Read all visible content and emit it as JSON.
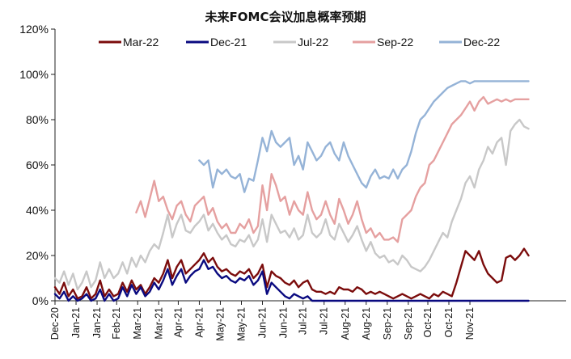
{
  "chart_data": {
    "type": "line",
    "title": "未来FOMC会议加息概率预期",
    "xlabel": "",
    "ylabel": "",
    "ylim": [
      0,
      120
    ],
    "xlim": [
      0,
      340
    ],
    "y_ticks": [
      "0%",
      "20%",
      "40%",
      "60%",
      "80%",
      "100%",
      "120%"
    ],
    "y_tick_values": [
      0,
      20,
      40,
      60,
      80,
      100,
      120
    ],
    "x_ticks": [
      "Dec-20",
      "Jan-21",
      "Jan-21",
      "Feb-21",
      "Mar-21",
      "Mar-21",
      "Apr-21",
      "Apr-21",
      "May-21",
      "May-21",
      "Jun-21",
      "Jun-21",
      "Jul-21",
      "Jul-21",
      "Aug-21",
      "Aug-21",
      "Sep-21",
      "Sep-21",
      "Oct-21",
      "Oct-21",
      "Nov-21"
    ],
    "x_tick_positions": [
      0,
      14,
      28,
      41,
      55,
      69,
      82,
      96,
      110,
      124,
      138,
      152,
      165,
      179,
      193,
      207,
      221,
      235,
      248,
      262,
      276
    ],
    "legend": {
      "placement": "top"
    },
    "series": [
      {
        "name": "Mar-22",
        "color": "#7b0c0c",
        "x": [
          0,
          3,
          6,
          9,
          12,
          15,
          18,
          21,
          24,
          27,
          30,
          33,
          36,
          39,
          42,
          45,
          48,
          51,
          54,
          57,
          60,
          63,
          66,
          69,
          72,
          75,
          78,
          81,
          84,
          87,
          90,
          93,
          96,
          99,
          102,
          105,
          108,
          111,
          114,
          117,
          120,
          123,
          126,
          129,
          132,
          135,
          138,
          141,
          144,
          147,
          150,
          153,
          156,
          159,
          162,
          165,
          168,
          171,
          174,
          177,
          180,
          183,
          186,
          189,
          192,
          195,
          198,
          201,
          204,
          207,
          210,
          213,
          216,
          219,
          222,
          225,
          228,
          231,
          234,
          237,
          240,
          243,
          246,
          249,
          252,
          255,
          258,
          261,
          264,
          267,
          270,
          273,
          276,
          279,
          282,
          285,
          288,
          291,
          294,
          297,
          300,
          303,
          306,
          309,
          312,
          315
        ],
        "values": [
          6,
          3,
          8,
          2,
          5,
          1,
          2,
          6,
          1,
          3,
          9,
          2,
          5,
          2,
          3,
          8,
          4,
          9,
          5,
          7,
          3,
          6,
          10,
          8,
          12,
          18,
          10,
          15,
          18,
          12,
          14,
          16,
          18,
          21,
          17,
          19,
          15,
          13,
          14,
          12,
          11,
          13,
          12,
          14,
          10,
          12,
          16,
          6,
          13,
          11,
          10,
          8,
          7,
          9,
          6,
          8,
          9,
          5,
          4,
          4,
          3,
          4,
          3,
          6,
          5,
          5,
          4,
          6,
          5,
          3,
          4,
          3,
          4,
          3,
          2,
          1,
          2,
          3,
          2,
          1,
          2,
          3,
          2,
          1,
          3,
          2,
          4,
          3,
          2,
          8,
          15,
          22,
          20,
          18,
          22,
          16,
          12,
          10,
          8,
          9,
          19,
          20,
          18,
          20,
          23,
          20
        ]
      },
      {
        "name": "Dec-21",
        "color": "#0a0a80",
        "x": [
          0,
          3,
          6,
          9,
          12,
          15,
          18,
          21,
          24,
          27,
          30,
          33,
          36,
          39,
          42,
          45,
          48,
          51,
          54,
          57,
          60,
          63,
          66,
          69,
          72,
          75,
          78,
          81,
          84,
          87,
          90,
          93,
          96,
          99,
          102,
          105,
          108,
          111,
          114,
          117,
          120,
          123,
          126,
          129,
          132,
          135,
          138,
          141,
          144,
          147,
          150,
          153,
          156,
          159,
          162,
          165,
          168,
          171,
          174,
          177,
          180,
          183,
          186,
          189,
          192,
          195,
          198,
          201,
          204,
          207,
          210,
          213,
          216,
          219,
          222,
          225,
          228,
          231,
          234,
          237,
          240,
          243,
          246,
          249,
          252,
          255,
          258,
          261,
          264,
          267,
          270,
          273,
          276,
          279,
          282,
          285,
          288,
          291,
          294,
          297,
          300,
          303,
          306,
          309,
          312,
          315
        ],
        "values": [
          3,
          1,
          4,
          0,
          2,
          0,
          1,
          3,
          0,
          1,
          5,
          0,
          3,
          0,
          1,
          6,
          2,
          7,
          3,
          6,
          2,
          4,
          8,
          5,
          9,
          14,
          7,
          11,
          14,
          8,
          11,
          13,
          14,
          18,
          14,
          15,
          12,
          10,
          11,
          9,
          8,
          10,
          9,
          11,
          7,
          9,
          13,
          3,
          8,
          6,
          4,
          2,
          1,
          3,
          2,
          1,
          2,
          0,
          0,
          0,
          0,
          0,
          0,
          0,
          0,
          0,
          0,
          0,
          0,
          0,
          0,
          0,
          0,
          0,
          0,
          0,
          0,
          0,
          0,
          0,
          0,
          0,
          0,
          0,
          0,
          0,
          0,
          0,
          0,
          0,
          0,
          0,
          0,
          0,
          0,
          0,
          0,
          0,
          0,
          0,
          0,
          0,
          0,
          0,
          0,
          0
        ]
      },
      {
        "name": "Jul-22",
        "color": "#c8c8c8",
        "x": [
          0,
          3,
          6,
          9,
          12,
          15,
          18,
          21,
          24,
          27,
          30,
          33,
          36,
          39,
          42,
          45,
          48,
          51,
          54,
          57,
          60,
          63,
          66,
          69,
          72,
          75,
          78,
          81,
          84,
          87,
          90,
          93,
          96,
          99,
          102,
          105,
          108,
          111,
          114,
          117,
          120,
          123,
          126,
          129,
          132,
          135,
          138,
          141,
          144,
          147,
          150,
          153,
          156,
          159,
          162,
          165,
          168,
          171,
          174,
          177,
          180,
          183,
          186,
          189,
          192,
          195,
          198,
          201,
          204,
          207,
          210,
          213,
          216,
          219,
          222,
          225,
          228,
          231,
          234,
          237,
          240,
          243,
          246,
          249,
          252,
          255,
          258,
          261,
          264,
          267,
          270,
          273,
          276,
          279,
          282,
          285,
          288,
          291,
          294,
          297,
          300,
          303,
          306,
          309,
          312,
          315
        ],
        "values": [
          10,
          8,
          13,
          7,
          12,
          5,
          8,
          13,
          6,
          9,
          17,
          10,
          14,
          10,
          12,
          17,
          12,
          19,
          15,
          20,
          17,
          22,
          25,
          23,
          30,
          38,
          28,
          34,
          38,
          31,
          30,
          33,
          35,
          38,
          31,
          34,
          30,
          27,
          29,
          25,
          24,
          27,
          26,
          29,
          24,
          27,
          36,
          26,
          38,
          34,
          30,
          31,
          28,
          32,
          27,
          29,
          38,
          30,
          28,
          30,
          36,
          29,
          27,
          34,
          30,
          26,
          29,
          33,
          27,
          22,
          26,
          21,
          19,
          20,
          17,
          18,
          16,
          20,
          18,
          15,
          14,
          13,
          15,
          18,
          22,
          26,
          30,
          28,
          35,
          40,
          45,
          52,
          55,
          50,
          58,
          62,
          68,
          65,
          70,
          72,
          60,
          75,
          78,
          80,
          77,
          76
        ]
      },
      {
        "name": "Sep-22",
        "color": "#e5a0a0",
        "x": [
          54,
          57,
          60,
          63,
          66,
          69,
          72,
          75,
          78,
          81,
          84,
          87,
          90,
          93,
          96,
          99,
          102,
          105,
          108,
          111,
          114,
          117,
          120,
          123,
          126,
          129,
          132,
          135,
          138,
          141,
          144,
          147,
          150,
          153,
          156,
          159,
          162,
          165,
          168,
          171,
          174,
          177,
          180,
          183,
          186,
          189,
          192,
          195,
          198,
          201,
          204,
          207,
          210,
          213,
          216,
          219,
          222,
          225,
          228,
          231,
          234,
          237,
          240,
          243,
          246,
          249,
          252,
          255,
          258,
          261,
          264,
          267,
          270,
          273,
          276,
          279,
          282,
          285,
          288,
          291,
          294,
          297,
          300,
          303,
          306,
          309,
          312,
          315
        ],
        "values": [
          39,
          44,
          37,
          45,
          53,
          44,
          46,
          40,
          36,
          42,
          44,
          38,
          35,
          42,
          44,
          46,
          38,
          41,
          35,
          32,
          34,
          30,
          30,
          34,
          32,
          36,
          30,
          33,
          51,
          40,
          56,
          51,
          44,
          46,
          38,
          44,
          40,
          38,
          48,
          40,
          36,
          38,
          44,
          38,
          34,
          45,
          40,
          34,
          38,
          44,
          36,
          30,
          32,
          28,
          30,
          27,
          27,
          28,
          26,
          36,
          38,
          40,
          46,
          50,
          52,
          60,
          62,
          66,
          70,
          74,
          78,
          80,
          82,
          85,
          88,
          84,
          88,
          90,
          87,
          88,
          89,
          88,
          89,
          88,
          89,
          89,
          89,
          89
        ]
      },
      {
        "name": "Dec-22",
        "color": "#95b3d7",
        "x": [
          96,
          99,
          102,
          105,
          108,
          111,
          114,
          117,
          120,
          123,
          126,
          129,
          132,
          135,
          138,
          141,
          144,
          147,
          150,
          153,
          156,
          159,
          162,
          165,
          168,
          171,
          174,
          177,
          180,
          183,
          186,
          189,
          192,
          195,
          198,
          201,
          204,
          207,
          210,
          213,
          216,
          219,
          222,
          225,
          228,
          231,
          234,
          237,
          240,
          243,
          246,
          249,
          252,
          255,
          258,
          261,
          264,
          267,
          270,
          273,
          276,
          279,
          282,
          285,
          288,
          291,
          294,
          297,
          300,
          303,
          306,
          309,
          312,
          315
        ],
        "values": [
          62,
          60,
          62,
          50,
          58,
          56,
          58,
          55,
          54,
          56,
          48,
          54,
          53,
          62,
          72,
          66,
          75,
          70,
          68,
          70,
          72,
          60,
          64,
          58,
          70,
          66,
          62,
          64,
          68,
          70,
          65,
          62,
          70,
          64,
          60,
          56,
          52,
          50,
          55,
          58,
          54,
          55,
          54,
          58,
          54,
          58,
          60,
          66,
          74,
          80,
          82,
          85,
          88,
          90,
          92,
          94,
          95,
          96,
          97,
          97,
          96,
          97,
          97,
          97,
          97,
          97,
          97,
          97,
          97,
          97,
          97,
          97,
          97,
          97
        ]
      }
    ]
  }
}
